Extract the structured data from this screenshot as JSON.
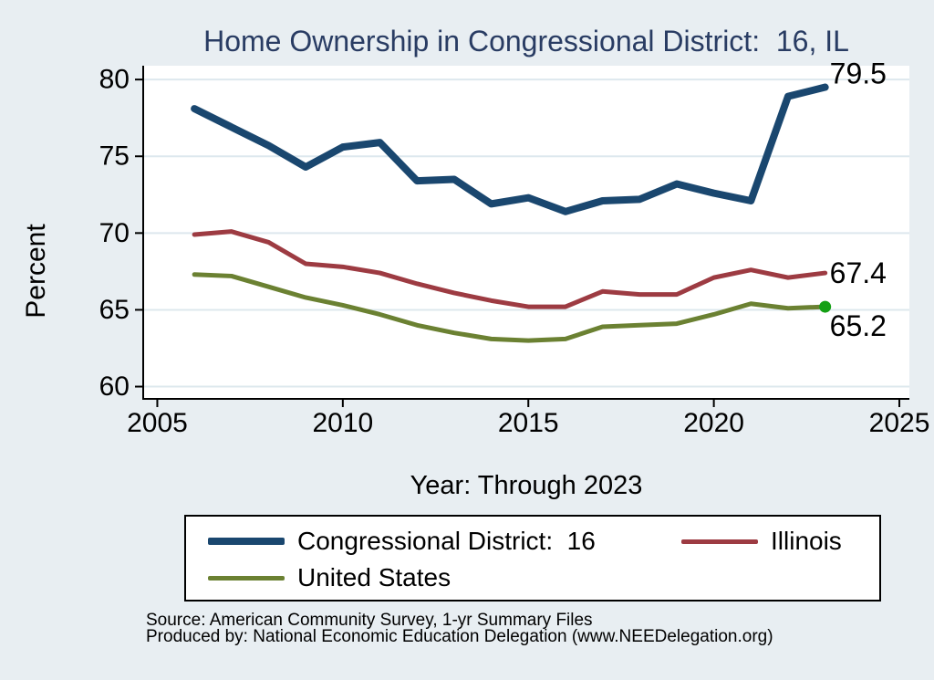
{
  "title": {
    "text": "Home Ownership in Congressional District:  16, IL",
    "color": "#293c63"
  },
  "colors": {
    "background": "#e8eef2",
    "plot_background": "#ffffff",
    "gridline": "#dde8ee",
    "axis": "#000000",
    "tick_label": "#000000",
    "end_label": "#000000"
  },
  "chart_data": {
    "type": "line",
    "title": "Home Ownership in Congressional District:  16, IL",
    "xlabel": "Year: Through 2023",
    "ylabel": "Percent",
    "x": [
      2006,
      2007,
      2008,
      2009,
      2010,
      2011,
      2012,
      2013,
      2014,
      2015,
      2016,
      2017,
      2018,
      2019,
      2020,
      2021,
      2022,
      2023
    ],
    "series": [
      {
        "name": "Congressional District:  16",
        "color": "#1a476f",
        "line_width": 8,
        "values": [
          78.1,
          76.9,
          75.7,
          74.3,
          75.6,
          75.9,
          73.4,
          73.5,
          71.9,
          72.3,
          71.4,
          72.1,
          72.2,
          73.2,
          72.6,
          72.1,
          78.9,
          79.5
        ],
        "end_label": "79.5",
        "end_label_dy": -15
      },
      {
        "name": "Illinois",
        "color": "#9d3b42",
        "line_width": 5,
        "values": [
          69.9,
          70.1,
          69.4,
          68.0,
          67.8,
          67.4,
          66.7,
          66.1,
          65.6,
          65.2,
          65.2,
          66.2,
          66.0,
          66.0,
          67.1,
          67.6,
          67.1,
          67.4
        ],
        "end_label": "67.4",
        "end_label_dy": 0
      },
      {
        "name": "United States",
        "color": "#6b8132",
        "line_width": 5,
        "values": [
          67.3,
          67.2,
          66.5,
          65.8,
          65.3,
          64.7,
          64.0,
          63.5,
          63.1,
          63.0,
          63.1,
          63.9,
          64.0,
          64.1,
          64.7,
          65.4,
          65.1,
          65.2
        ],
        "end_label": "65.2",
        "end_label_dy": 21,
        "end_marker_color": "#14a014"
      }
    ],
    "x_ticks": [
      2005,
      2010,
      2015,
      2020,
      2025
    ],
    "y_ticks": [
      60,
      65,
      70,
      75,
      80
    ],
    "xlim": [
      2004.62,
      2025.27
    ],
    "ylim": [
      59.2,
      80.9
    ],
    "grid": "horizontal",
    "legend_position": "bottom"
  },
  "source": {
    "line1": "Source: American Community Survey, 1-yr Summary Files",
    "line2": "Produced by: National Economic Education Delegation (www.NEEDelegation.org)"
  }
}
